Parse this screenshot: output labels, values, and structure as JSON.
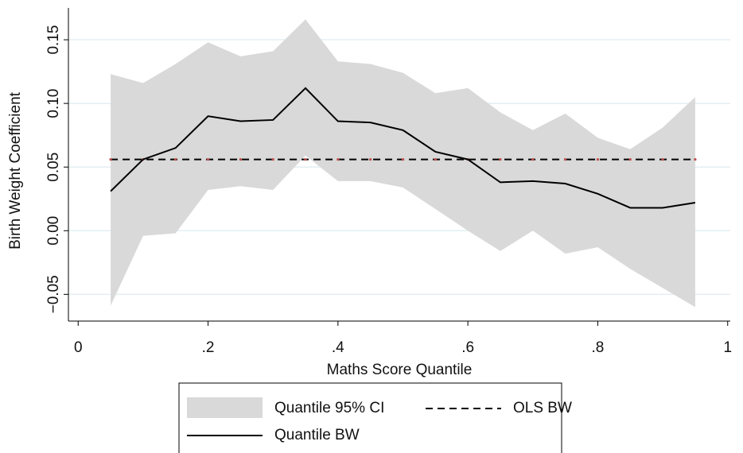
{
  "chart_data": {
    "type": "line",
    "x_label": "Maths Score Quantile",
    "y_label": "Birth Weight Coefficient",
    "x": [
      0.05,
      0.1,
      0.15,
      0.2,
      0.25,
      0.3,
      0.35,
      0.4,
      0.45,
      0.5,
      0.55,
      0.6,
      0.65,
      0.7,
      0.75,
      0.8,
      0.85,
      0.9,
      0.95
    ],
    "series": [
      {
        "name": "Quantile 95% CI",
        "color": "#d9d9d9",
        "lower": [
          -0.059,
          -0.004,
          -0.002,
          0.032,
          0.035,
          0.032,
          0.059,
          0.039,
          0.039,
          0.034,
          0.017,
          0.0,
          -0.016,
          0.0,
          -0.018,
          -0.013,
          -0.03,
          -0.045,
          -0.06
        ],
        "upper": [
          0.123,
          0.116,
          0.131,
          0.148,
          0.137,
          0.141,
          0.166,
          0.133,
          0.131,
          0.124,
          0.108,
          0.112,
          0.093,
          0.079,
          0.092,
          0.073,
          0.064,
          0.081,
          0.105
        ]
      },
      {
        "name": "OLS BW",
        "color": "#000000",
        "dash": true,
        "marker_color": "#c0504d",
        "values": [
          0.056,
          0.056,
          0.056,
          0.056,
          0.056,
          0.056,
          0.056,
          0.056,
          0.056,
          0.056,
          0.056,
          0.056,
          0.056,
          0.056,
          0.056,
          0.056,
          0.056,
          0.056,
          0.056
        ]
      },
      {
        "name": "Quantile BW",
        "color": "#000000",
        "values": [
          0.031,
          0.056,
          0.065,
          0.09,
          0.086,
          0.087,
          0.112,
          0.086,
          0.085,
          0.079,
          0.062,
          0.056,
          0.038,
          0.039,
          0.037,
          0.029,
          0.018,
          0.018,
          0.022
        ]
      }
    ],
    "xlim": [
      -0.015,
      1.004
    ],
    "ylim": [
      -0.071,
      0.175
    ],
    "xticks": [
      0,
      {
        "value": 0.2,
        "label": ".2"
      },
      {
        "value": 0.4,
        "label": ".4"
      },
      {
        "value": 0.6,
        "label": ".6"
      },
      {
        "value": 0.8,
        "label": ".8"
      },
      1
    ],
    "yticks": [
      {
        "value": -0.05,
        "label": "−0.05"
      },
      {
        "value": 0,
        "label": "0.00"
      },
      {
        "value": 0.05,
        "label": "0.05"
      },
      {
        "value": 0.1,
        "label": "0.10"
      },
      {
        "value": 0.15,
        "label": "0.15"
      }
    ],
    "grid": true,
    "grid_color": "#e3eff3"
  }
}
